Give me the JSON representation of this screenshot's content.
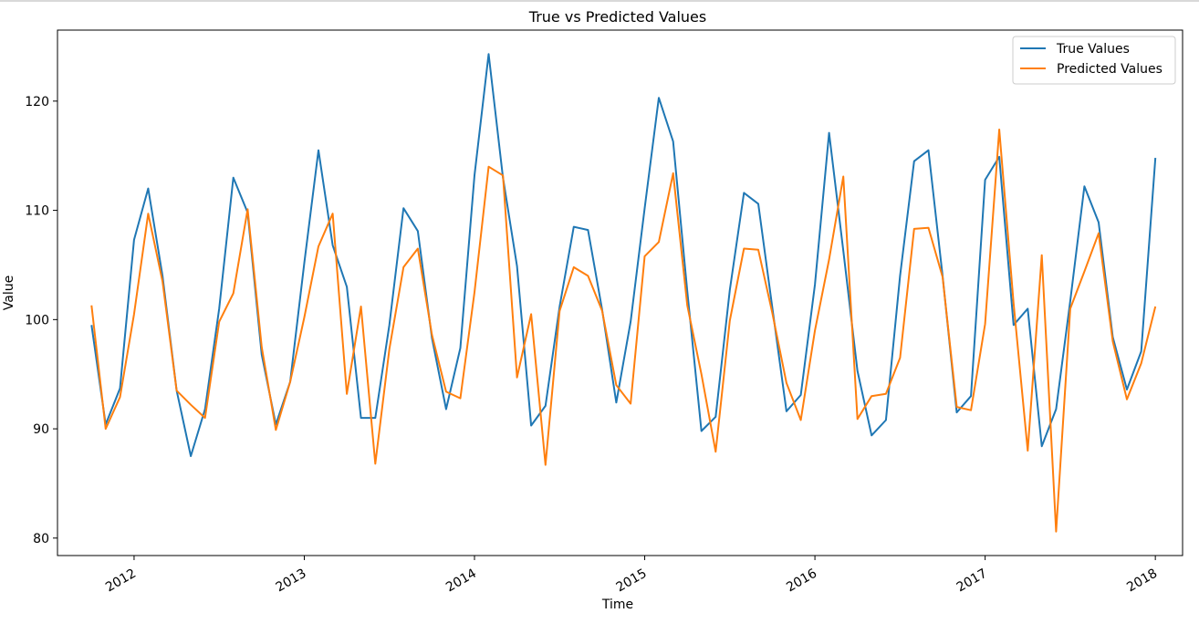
{
  "chart_data": {
    "type": "line",
    "title": "True vs Predicted Values",
    "xlabel": "Time",
    "ylabel": "Value",
    "xlim": [
      2011.55,
      2018.16
    ],
    "ylim": [
      78.4,
      126.5
    ],
    "x_ticks": [
      2012,
      2013,
      2014,
      2015,
      2016,
      2017,
      2018
    ],
    "y_ticks": [
      80,
      90,
      100,
      110,
      120
    ],
    "legend_position": "top-right",
    "grid": false,
    "x": [
      2011.75,
      2011.833,
      2011.917,
      2012.0,
      2012.083,
      2012.167,
      2012.25,
      2012.333,
      2012.417,
      2012.5,
      2012.583,
      2012.667,
      2012.75,
      2012.833,
      2012.917,
      2013.0,
      2013.083,
      2013.167,
      2013.25,
      2013.333,
      2013.417,
      2013.5,
      2013.583,
      2013.667,
      2013.75,
      2013.833,
      2013.917,
      2014.0,
      2014.083,
      2014.167,
      2014.25,
      2014.333,
      2014.417,
      2014.5,
      2014.583,
      2014.667,
      2014.75,
      2014.833,
      2014.917,
      2015.0,
      2015.083,
      2015.167,
      2015.25,
      2015.333,
      2015.417,
      2015.5,
      2015.583,
      2015.667,
      2015.75,
      2015.833,
      2015.917,
      2016.0,
      2016.083,
      2016.167,
      2016.25,
      2016.333,
      2016.417,
      2016.5,
      2016.583,
      2016.667,
      2016.75,
      2016.833,
      2016.917,
      2017.0,
      2017.083,
      2017.167,
      2017.25,
      2017.333,
      2017.417,
      2017.5,
      2017.583,
      2017.667,
      2017.75,
      2017.833,
      2017.917,
      2018.0
    ],
    "series": [
      {
        "name": "True Values",
        "color": "#1f77b4",
        "values": [
          99.5,
          90.4,
          93.7,
          107.3,
          112.0,
          104.0,
          93.5,
          87.5,
          91.8,
          101.0,
          113.0,
          109.8,
          96.8,
          90.4,
          94.3,
          105.2,
          115.5,
          106.8,
          103.0,
          91.0,
          91.0,
          99.5,
          110.2,
          108.1,
          98.3,
          91.8,
          97.4,
          113.2,
          124.3,
          113.0,
          104.9,
          90.3,
          92.1,
          101.2,
          108.5,
          108.2,
          100.9,
          92.4,
          99.8,
          110.2,
          120.3,
          116.3,
          102.6,
          89.8,
          91.1,
          102.7,
          111.6,
          110.6,
          101.1,
          91.6,
          93.1,
          103.2,
          117.1,
          106.3,
          95.3,
          89.4,
          90.8,
          104.0,
          114.5,
          115.5,
          104.0,
          91.5,
          93.0,
          112.8,
          114.9,
          99.5,
          101.0,
          88.4,
          91.8,
          101.7,
          112.2,
          108.9,
          98.4,
          93.6,
          97.1,
          114.8
        ]
      },
      {
        "name": "Predicted Values",
        "color": "#ff7f0e",
        "values": [
          101.3,
          90.0,
          92.9,
          100.5,
          109.7,
          103.5,
          93.5,
          92.2,
          91.0,
          99.8,
          102.4,
          110.1,
          97.5,
          89.9,
          94.3,
          100.2,
          106.7,
          109.7,
          93.2,
          101.2,
          86.8,
          97.3,
          104.8,
          106.5,
          98.6,
          93.4,
          92.8,
          102.5,
          114.0,
          113.2,
          94.7,
          100.5,
          86.7,
          100.8,
          104.8,
          104.0,
          100.8,
          94.0,
          92.3,
          105.8,
          107.1,
          113.4,
          101.3,
          95.0,
          87.9,
          99.9,
          106.5,
          106.4,
          100.6,
          94.2,
          90.8,
          99.0,
          105.5,
          113.1,
          90.9,
          93.0,
          93.2,
          96.5,
          108.3,
          108.4,
          103.9,
          92.0,
          91.7,
          99.6,
          117.4,
          101.5,
          88.0,
          105.9,
          80.6,
          101.0,
          104.4,
          107.9,
          98.0,
          92.7,
          96.0,
          101.2
        ]
      }
    ]
  }
}
